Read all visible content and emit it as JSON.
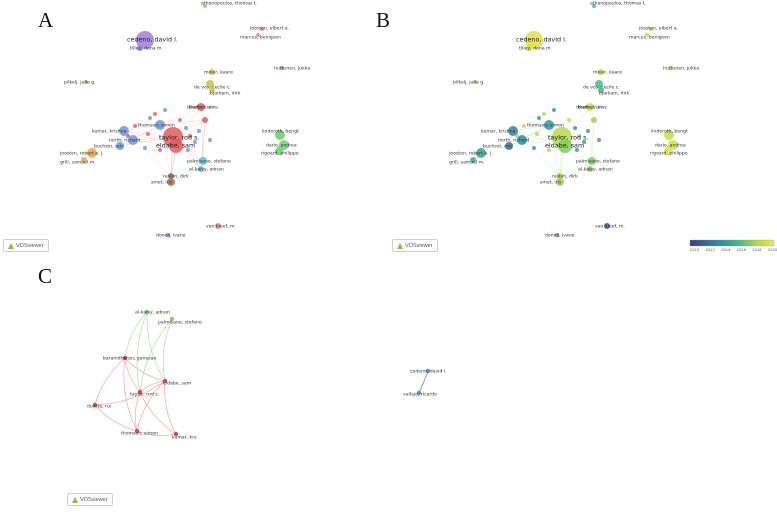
{
  "panels": {
    "a": "A",
    "b": "B",
    "c": "C"
  },
  "viewer_label": "VOSviewer",
  "colorbar": {
    "ticks": [
      "2010",
      "2012",
      "2014",
      "2016",
      "2018",
      "2020"
    ],
    "colors": [
      "#3b3b82",
      "#3a6aa0",
      "#2a9a9a",
      "#4cbf82",
      "#b5d94a",
      "#f5e33a"
    ]
  },
  "nodes_ab": [
    {
      "label": "cedeno, david l.",
      "cluster": "#a47fd8",
      "year": 0.94,
      "big": true
    },
    {
      "label": "tilley, dana m.",
      "cluster": "#a47fd8",
      "year": 0.92
    },
    {
      "label": "athanopoulos, thomas t.",
      "cluster": "#8ec97a",
      "year": 0.6
    },
    {
      "label": "joosten, elbert a.",
      "cluster": "#e58b8b",
      "year": 0.8
    },
    {
      "label": "marcus, benigsen",
      "cluster": "#e58b8b",
      "year": 0.85
    },
    {
      "label": "meier, kaare",
      "cluster": "#cfc04a",
      "year": 0.86
    },
    {
      "label": "de vos, cecile c.",
      "cluster": "#cfc04a",
      "year": 0.58
    },
    {
      "label": "bjarkam, dirk",
      "cluster": "#cfc04a",
      "year": 0.55
    },
    {
      "label": "huttunen, jukka",
      "cluster": "#d678c7",
      "year": 0.88
    },
    {
      "label": "pilkelj, julie g.",
      "cluster": "#cfc04a",
      "year": 0.85
    },
    {
      "label": "thakral, sir v.",
      "cluster": "#e45b5b",
      "year": 0.9
    },
    {
      "label": "taylor, rod s.",
      "cluster": "#e45b5b",
      "year": 0.8,
      "big": true
    },
    {
      "label": "eldabe, sam",
      "cluster": "#e45b5b",
      "year": 0.7,
      "big": true
    },
    {
      "label": "duarte, rui v.",
      "cluster": "#e45b5b",
      "year": 0.75
    },
    {
      "label": "kumar, krishna",
      "cluster": "#6f95d6",
      "year": 0.3
    },
    {
      "label": "thomson, simon",
      "cluster": "#6f95d6",
      "year": 0.4
    },
    {
      "label": "north, richard",
      "cluster": "#6f95d6",
      "year": 0.35
    },
    {
      "label": "buchser, eric",
      "cluster": "#6f95d6",
      "year": 0.25
    },
    {
      "label": "joosten, robert a. j.",
      "cluster": "#f0a04a",
      "year": 0.45
    },
    {
      "label": "grill, samuel m.",
      "cluster": "#f0a04a",
      "year": 0.5
    },
    {
      "label": "palmisano, stefano",
      "cluster": "#59c1d4",
      "year": 0.7
    },
    {
      "label": "al-kaisy, adnan",
      "cluster": "#59c1d4",
      "year": 0.72
    },
    {
      "label": "raslan, dirk",
      "cluster": "#a0755a",
      "year": 0.78
    },
    {
      "label": "smet, iris",
      "cluster": "#a0755a",
      "year": 0.74
    },
    {
      "label": "linderoth, bengt",
      "cluster": "#6fcf6f",
      "year": 0.85
    },
    {
      "label": "dario, andrea",
      "cluster": "#6fcf6f",
      "year": 0.9
    },
    {
      "label": "rigoard, philippe",
      "cluster": "#6fcf6f",
      "year": 0.92
    },
    {
      "label": "van kleef, m.",
      "cluster": "#e58b8b",
      "year": 0.1
    },
    {
      "label": "doneij, ivano",
      "cluster": "#5d9ed8",
      "year": 0.55
    }
  ],
  "nodes_c": [
    {
      "label": "al-kaisy, adnan",
      "color": "#8ec97a"
    },
    {
      "label": "palmisano, stefano",
      "color": "#8ec97a"
    },
    {
      "label": "baranidharan, ganesan",
      "color": "#d84a4a"
    },
    {
      "label": "eldabe, sam",
      "color": "#d84a4a"
    },
    {
      "label": "taylor, rod s.",
      "color": "#d84a4a"
    },
    {
      "label": "duarte, rui",
      "color": "#d84a4a"
    },
    {
      "label": "thomson, simon",
      "color": "#d84a4a"
    },
    {
      "label": "kumar, krs",
      "color": "#d84a4a"
    },
    {
      "label": "cedeno, david l.",
      "color": "#5b8fd6"
    },
    {
      "label": "vallejo, ricardo",
      "color": "#5b8fd6"
    }
  ]
}
